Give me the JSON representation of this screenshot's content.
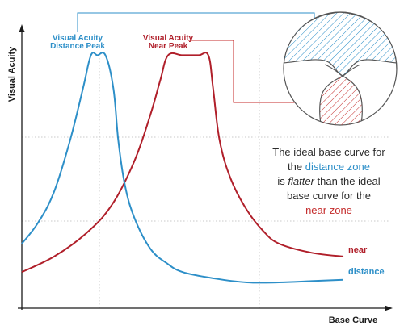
{
  "chart_data": {
    "type": "line",
    "xlabel": "Base Curve",
    "ylabel": "Visual Acuity",
    "xlim": [
      0,
      10
    ],
    "ylim": [
      0,
      10
    ],
    "grid": "dotted",
    "colors": {
      "distance": "#2d8fc8",
      "near": "#b01f2a"
    },
    "series": [
      {
        "name": "distance",
        "x": [
          0,
          0.5,
          1,
          1.5,
          1.9,
          2.15,
          2.35,
          2.6,
          2.85,
          3.0,
          3.2,
          3.5,
          4.0,
          4.5,
          5.0,
          6.0,
          7.0,
          8.0,
          9.0,
          10.0
        ],
        "y": [
          2.5,
          3.3,
          4.5,
          6.5,
          8.5,
          9.8,
          9.8,
          9.8,
          8.5,
          6.5,
          4.8,
          3.5,
          2.3,
          1.75,
          1.4,
          1.15,
          1.0,
          1.0,
          1.05,
          1.1
        ]
      },
      {
        "name": "near",
        "x": [
          0,
          1.0,
          2.0,
          2.8,
          3.5,
          4.0,
          4.3,
          4.55,
          5.0,
          5.5,
          5.8,
          5.95,
          6.15,
          6.5,
          7.0,
          7.5,
          8.0,
          9.0,
          10.0
        ],
        "y": [
          1.4,
          2.0,
          2.9,
          4.0,
          5.7,
          7.5,
          8.8,
          9.8,
          9.8,
          9.8,
          9.8,
          8.5,
          6.5,
          5.0,
          3.8,
          3.0,
          2.5,
          2.15,
          2.0
        ]
      }
    ],
    "peaks": [
      {
        "line1": "Visual Acuity",
        "line2": "Distance Peak"
      },
      {
        "line1": "Visual Acuity",
        "line2": "Near Peak"
      }
    ]
  },
  "annotation": {
    "line1": "The ideal base curve for",
    "line2_prefix": "the ",
    "line2_highlight": "distance zone",
    "line3_prefix": "is ",
    "line3_emph": "flatter",
    "line3_suffix": " than the ideal",
    "line4": "base curve for the",
    "line5_highlight": "near zone"
  }
}
